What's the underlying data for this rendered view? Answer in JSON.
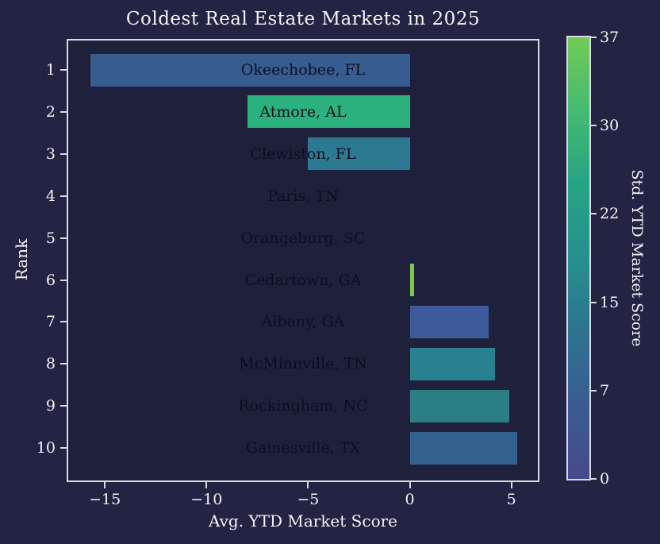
{
  "figure": {
    "background": "#232343",
    "plot_background": "#1f203c",
    "axis_color": "#d9d9e4",
    "text_color": "#f4f4f6",
    "bar_label_color": "#0d0d20"
  },
  "chart_data": {
    "type": "bar",
    "orientation": "horizontal",
    "title": "Coldest Real Estate Markets in 2025",
    "xlabel": "Avg. YTD Market Score",
    "ylabel": "Rank",
    "xlim": [
      -16.8,
      6.3
    ],
    "grid": false,
    "x_ticks": [
      {
        "value": -15,
        "label": "−15"
      },
      {
        "value": -10,
        "label": "−10"
      },
      {
        "value": -5,
        "label": "−5"
      },
      {
        "value": 0,
        "label": "0"
      },
      {
        "value": 5,
        "label": "5"
      }
    ],
    "bars": [
      {
        "rank": "1",
        "city": "Okeechobee, FL",
        "value": -15.7,
        "color": "#375c90"
      },
      {
        "rank": "2",
        "city": "Atmore, AL",
        "value": -8.0,
        "color": "#2bb17e"
      },
      {
        "rank": "3",
        "city": "Clewiston, FL",
        "value": -5.0,
        "color": "#2c7a92"
      },
      {
        "rank": "4",
        "city": "Paris, TN",
        "value": 0,
        "color": null
      },
      {
        "rank": "5",
        "city": "Orangeburg, SC",
        "value": 0,
        "color": null
      },
      {
        "rank": "6",
        "city": "Cedartown, GA",
        "value": 0.2,
        "color": "#7cc84c"
      },
      {
        "rank": "7",
        "city": "Albany, GA",
        "value": 3.9,
        "color": "#3d5a9b"
      },
      {
        "rank": "8",
        "city": "McMinnville, TN",
        "value": 4.2,
        "color": "#28818f"
      },
      {
        "rank": "9",
        "city": "Rockingham, NC",
        "value": 4.9,
        "color": "#2c7e86"
      },
      {
        "rank": "10",
        "city": "Gainesville, TX",
        "value": 5.3,
        "color": "#35618f"
      }
    ],
    "colorbar": {
      "label": "Std. YTD Market Score",
      "min": 0,
      "max": 37,
      "tick_labels": [
        "37",
        "30",
        "22",
        "15",
        "7",
        "0"
      ],
      "gradient_top_to_bottom": [
        "#72ca55",
        "#45ba71",
        "#26a385",
        "#25908e",
        "#2e7390",
        "#3b5b93",
        "#464a8c"
      ]
    }
  }
}
